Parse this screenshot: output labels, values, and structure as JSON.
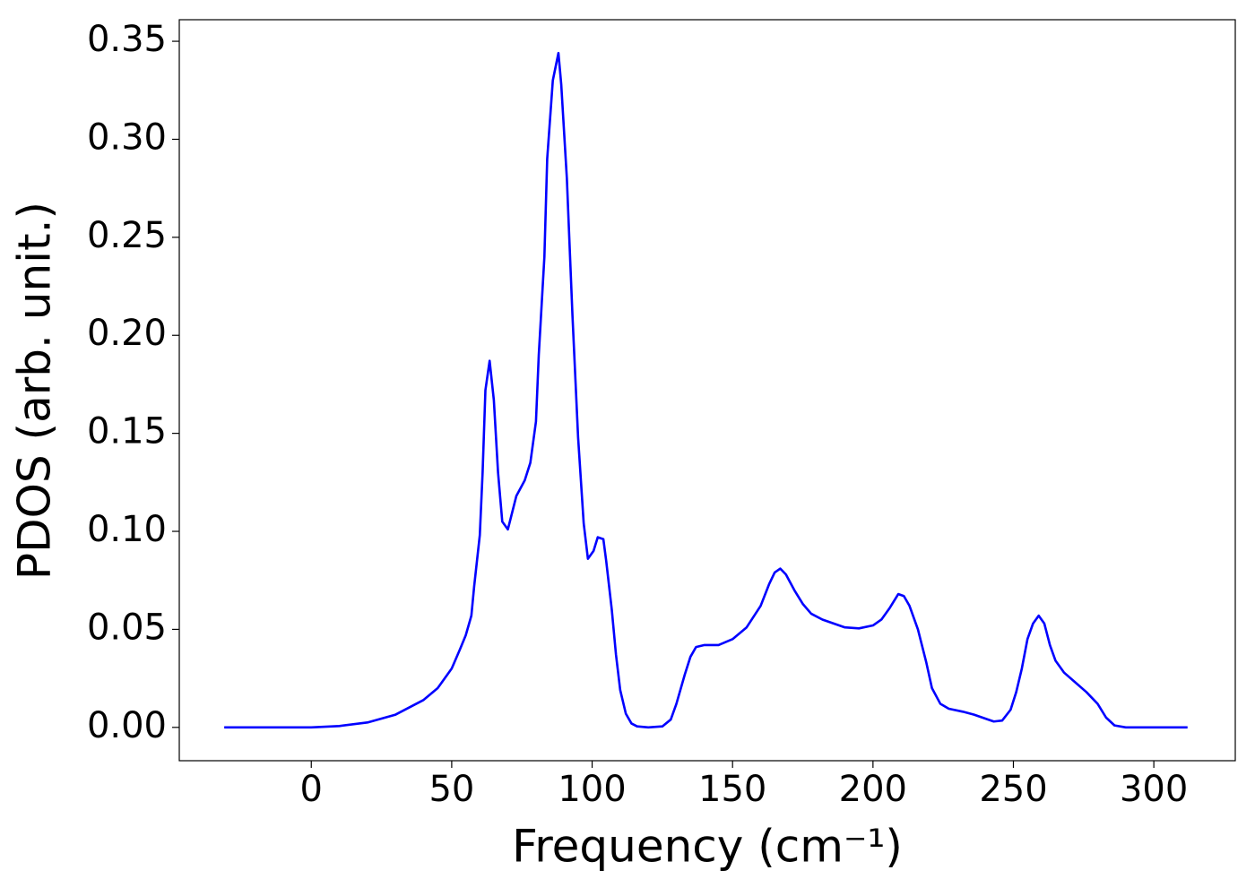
{
  "chart_data": {
    "type": "line",
    "xlabel": "Frequency (cm⁻¹)",
    "ylabel": "PDOS (arb. unit.)",
    "xlim": [
      -47,
      329
    ],
    "ylim": [
      -0.017,
      0.361
    ],
    "xticks": [
      0,
      50,
      100,
      150,
      200,
      250,
      300
    ],
    "yticks": [
      {
        "value": 0,
        "label": "0.00"
      },
      {
        "value": 0.05,
        "label": "0.05"
      },
      {
        "value": 0.1,
        "label": "0.10"
      },
      {
        "value": 0.15,
        "label": "0.15"
      },
      {
        "value": 0.2,
        "label": "0.20"
      },
      {
        "value": 0.25,
        "label": "0.25"
      },
      {
        "value": 0.3,
        "label": "0.30"
      },
      {
        "value": 0.35,
        "label": "0.35"
      }
    ],
    "grid": false,
    "series": [
      {
        "color": "#0000ff",
        "x": [
          -31,
          0,
          10,
          20,
          30,
          40,
          45,
          50,
          53,
          55,
          57,
          58,
          60,
          61,
          62,
          63.5,
          65,
          66.5,
          68,
          70,
          73,
          76,
          78,
          80,
          81,
          83,
          84,
          86,
          88,
          89,
          91,
          93,
          95,
          97,
          98.5,
          100.5,
          102,
          104,
          105,
          107,
          108.5,
          110,
          112,
          114,
          116,
          120,
          125,
          128,
          130,
          133,
          135,
          137,
          140,
          145,
          150,
          155,
          160,
          163,
          165,
          167,
          169,
          172,
          175,
          178,
          182,
          186,
          190,
          195,
          200,
          203,
          206,
          209,
          211,
          213,
          216,
          219,
          221,
          224,
          227,
          232,
          236,
          240,
          243,
          246,
          249,
          251,
          253,
          255,
          257,
          259,
          261,
          263,
          265,
          268,
          272,
          276,
          280,
          283,
          286,
          290,
          312
        ],
        "values": [
          0,
          0,
          0.0007,
          0.0025,
          0.0065,
          0.014,
          0.02,
          0.03,
          0.04,
          0.047,
          0.057,
          0.072,
          0.098,
          0.13,
          0.172,
          0.187,
          0.167,
          0.13,
          0.105,
          0.101,
          0.118,
          0.126,
          0.135,
          0.156,
          0.19,
          0.24,
          0.29,
          0.33,
          0.344,
          0.328,
          0.28,
          0.21,
          0.148,
          0.104,
          0.086,
          0.09,
          0.097,
          0.096,
          0.085,
          0.06,
          0.037,
          0.019,
          0.007,
          0.002,
          0.0005,
          0,
          0.0005,
          0.004,
          0.012,
          0.027,
          0.036,
          0.041,
          0.042,
          0.042,
          0.045,
          0.051,
          0.062,
          0.073,
          0.079,
          0.081,
          0.078,
          0.07,
          0.063,
          0.058,
          0.055,
          0.053,
          0.051,
          0.0505,
          0.052,
          0.055,
          0.061,
          0.068,
          0.067,
          0.062,
          0.05,
          0.033,
          0.02,
          0.012,
          0.0095,
          0.008,
          0.0065,
          0.0045,
          0.003,
          0.0035,
          0.009,
          0.018,
          0.03,
          0.045,
          0.053,
          0.057,
          0.053,
          0.042,
          0.034,
          0.028,
          0.023,
          0.018,
          0.012,
          0.005,
          0.001,
          0,
          0
        ]
      }
    ]
  }
}
